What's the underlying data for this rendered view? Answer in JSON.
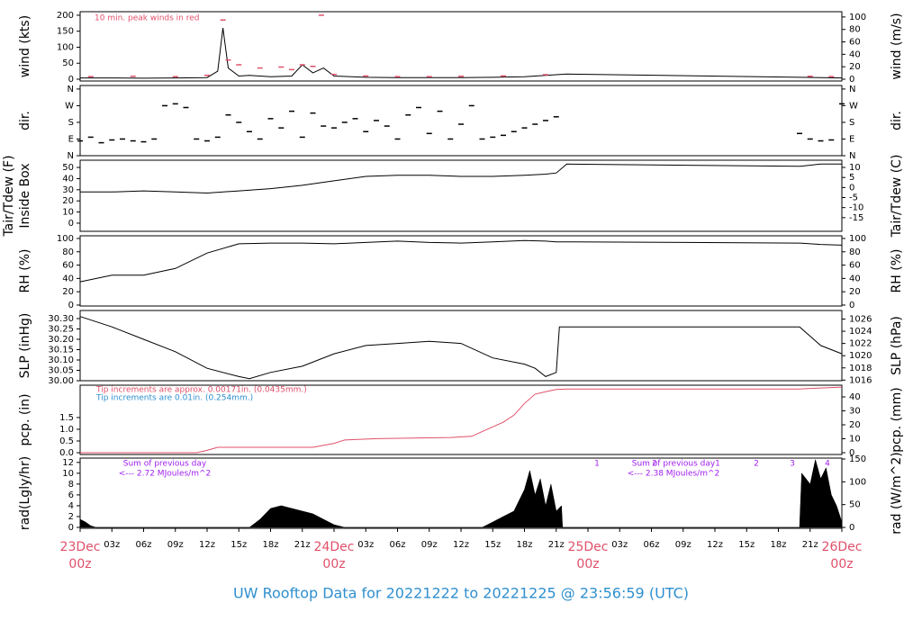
{
  "footer": "UW Rooftop Data for 20221222  to  20221225 @ 23:56:59  (UTC)",
  "chart_data": [
    {
      "type": "line",
      "ylabel": "wind (kts)",
      "y2label": "wind (m/s)",
      "xlim": [
        0,
        72
      ],
      "ylim": [
        -5.6,
        211
      ],
      "yticks": [
        0,
        50,
        100,
        150,
        200
      ],
      "y2lim": [
        -2.9,
        108.5
      ],
      "y2ticks": [
        0,
        20,
        40,
        60,
        80,
        100
      ],
      "annotations": [
        {
          "text": "10 min. peak winds in red"
        }
      ],
      "series": [
        {
          "type": "line",
          "color": "#000000",
          "x": [
            0,
            3,
            6,
            9,
            12,
            13,
            13.5,
            14,
            15,
            16,
            18,
            20,
            21,
            22,
            23,
            24,
            27,
            30,
            33,
            36,
            39,
            42,
            45,
            46,
            68,
            70,
            72
          ],
          "values": [
            4,
            4,
            3,
            4,
            5,
            25,
            160,
            35,
            10,
            12,
            8,
            10,
            45,
            20,
            35,
            10,
            6,
            5,
            5,
            5,
            6,
            8,
            14,
            16,
            6,
            5,
            4
          ]
        },
        {
          "type": "scatter",
          "color": "#e0506a",
          "x": [
            1,
            5,
            9,
            12,
            13.5,
            14,
            15,
            17,
            19,
            20,
            21,
            22,
            22.8,
            24,
            27,
            30,
            33,
            36,
            40,
            44,
            69,
            71
          ],
          "values": [
            8,
            9,
            8,
            12,
            185,
            60,
            45,
            35,
            38,
            30,
            45,
            40,
            200,
            15,
            10,
            8,
            8,
            9,
            10,
            14,
            9,
            8
          ]
        }
      ]
    },
    {
      "type": "scatter",
      "ylabel": "dir.",
      "y2label": "dir.",
      "xlim": [
        0,
        72
      ],
      "ylim": [
        0,
        379
      ],
      "yticks": [
        {
          "value": 0,
          "label": "N"
        },
        {
          "value": 90,
          "label": "E"
        },
        {
          "value": 180,
          "label": "S"
        },
        {
          "value": 270,
          "label": "W"
        },
        {
          "value": 360,
          "label": "N"
        }
      ],
      "y2lim": [
        0,
        379
      ],
      "y2ticks": [
        {
          "value": 0,
          "label": "N"
        },
        {
          "value": 90,
          "label": "E"
        },
        {
          "value": 180,
          "label": "S"
        },
        {
          "value": 270,
          "label": "W"
        },
        {
          "value": 360,
          "label": "N"
        }
      ],
      "series": [
        {
          "type": "scatter",
          "color": "#000000",
          "x": [
            0,
            1,
            2,
            3,
            4,
            5,
            6,
            7,
            8,
            9,
            10,
            11,
            12,
            13,
            14,
            15,
            16,
            17,
            18,
            19,
            20,
            21,
            22,
            23,
            24,
            25,
            26,
            27,
            28,
            29,
            30,
            31,
            32,
            33,
            34,
            35,
            36,
            37,
            38,
            39,
            40,
            41,
            42,
            43,
            44,
            45,
            68,
            69,
            70,
            71,
            72
          ],
          "values": [
            80,
            100,
            70,
            85,
            90,
            80,
            75,
            90,
            270,
            280,
            260,
            90,
            80,
            100,
            220,
            180,
            130,
            90,
            200,
            150,
            240,
            100,
            230,
            160,
            150,
            180,
            200,
            130,
            190,
            160,
            90,
            220,
            260,
            120,
            240,
            90,
            170,
            270,
            90,
            100,
            110,
            130,
            150,
            170,
            190,
            210,
            120,
            90,
            80,
            85,
            280
          ]
        }
      ]
    },
    {
      "type": "line",
      "ylabel": "Inside Box",
      "ylabel_outer": "Tair/Tdew (F)",
      "y2label": "Tair/Tdew (C)",
      "xlim": [
        0,
        72
      ],
      "ylim": [
        -7.3,
        56.5
      ],
      "yticks": [
        0,
        10,
        20,
        30,
        40,
        50
      ],
      "y2lim": [
        -21.8,
        13.6
      ],
      "y2ticks": [
        -15,
        -10,
        -5,
        0,
        5,
        10
      ],
      "series": [
        {
          "type": "line",
          "color": "#000000",
          "x": [
            0,
            3,
            6,
            9,
            12,
            15,
            18,
            21,
            24,
            27,
            30,
            33,
            36,
            39,
            42,
            44,
            45,
            46,
            68,
            70,
            72
          ],
          "values": [
            28,
            28,
            29,
            28,
            27,
            29,
            31,
            34,
            38,
            42,
            43,
            43,
            42,
            42,
            43,
            44,
            45,
            53,
            51,
            53,
            53
          ]
        }
      ]
    },
    {
      "type": "line",
      "ylabel": "RH (%)",
      "y2label": "RH (%)",
      "xlim": [
        0,
        72
      ],
      "ylim": [
        -1.4,
        104
      ],
      "yticks": [
        0,
        20,
        40,
        60,
        80,
        100
      ],
      "y2lim": [
        -1.4,
        104
      ],
      "y2ticks": [
        0,
        20,
        40,
        60,
        80,
        100
      ],
      "series": [
        {
          "type": "line",
          "color": "#000000",
          "x": [
            0,
            3,
            6,
            9,
            12,
            15,
            18,
            21,
            24,
            27,
            30,
            33,
            36,
            39,
            42,
            44,
            45,
            46,
            68,
            70,
            72
          ],
          "values": [
            35,
            45,
            45,
            55,
            78,
            92,
            93,
            93,
            92,
            94,
            96,
            94,
            93,
            95,
            97,
            96,
            95,
            95,
            93,
            91,
            90
          ]
        }
      ]
    },
    {
      "type": "line",
      "ylabel": "SLP (inHg)",
      "y2label": "SLP (hPa)",
      "xlim": [
        0,
        72
      ],
      "ylim": [
        30.0,
        30.339
      ],
      "yticks": [
        {
          "value": 30.0,
          "label": "30.00"
        },
        30.05,
        {
          "value": 30.1,
          "label": "30.10"
        },
        30.15,
        {
          "value": 30.2,
          "label": "30.20"
        },
        30.25,
        {
          "value": 30.3,
          "label": "30.30"
        }
      ],
      "y2lim": [
        1015.9,
        1027.4
      ],
      "y2ticks": [
        1016,
        1018,
        1020,
        1022,
        1024,
        1026
      ],
      "series": [
        {
          "type": "line",
          "color": "#000000",
          "x": [
            0,
            3,
            6,
            9,
            12,
            15,
            16,
            18,
            21,
            24,
            27,
            30,
            33,
            36,
            39,
            42,
            43,
            44,
            45,
            45.3,
            68,
            70,
            72
          ],
          "values": [
            30.31,
            30.26,
            30.2,
            30.14,
            30.06,
            30.02,
            30.01,
            30.04,
            30.07,
            30.13,
            30.17,
            30.18,
            30.19,
            30.18,
            30.11,
            30.08,
            30.06,
            30.02,
            30.04,
            30.26,
            30.26,
            30.17,
            30.13
          ]
        }
      ]
    },
    {
      "type": "line",
      "ylabel": "pcp. (in)",
      "y2label": "pcp. (mm)",
      "xlim": [
        0,
        72
      ],
      "ylim": [
        -0.077,
        2.88
      ],
      "yticks": [
        {
          "value": 0,
          "label": "0.0"
        },
        0.5,
        {
          "value": 1,
          "label": "1.0"
        },
        1.5
      ],
      "y2lim": [
        -1.3,
        48.4
      ],
      "y2ticks": [
        0,
        10,
        20,
        30,
        40
      ],
      "annotations": [
        {
          "text": "Tip increments are approx. 0.00171in. (0.0435mm.)"
        },
        {
          "text": "Tip increments are 0.01in. (0.254mm.)"
        }
      ],
      "series": [
        {
          "type": "line",
          "color": "#e0506a",
          "x": [
            0,
            11,
            12,
            13,
            22,
            24,
            25,
            28,
            35,
            37,
            38,
            40,
            41,
            42,
            43,
            44,
            45,
            46,
            68,
            72
          ],
          "values": [
            0,
            0,
            0.1,
            0.23,
            0.23,
            0.4,
            0.54,
            0.6,
            0.65,
            0.7,
            0.9,
            1.3,
            1.6,
            2.1,
            2.5,
            2.6,
            2.7,
            2.72,
            2.72,
            2.8
          ]
        }
      ]
    },
    {
      "type": "area",
      "ylabel": "rad(Lgly/hr)",
      "y2label": "rad (W/m^2)",
      "xlim": [
        0,
        72
      ],
      "ylim": [
        -0.17,
        12.8
      ],
      "yticks": [
        0,
        2,
        4,
        6,
        8,
        10,
        12
      ],
      "y2lim": [
        -2,
        152
      ],
      "y2ticks": [
        0,
        50,
        100,
        150
      ],
      "xticks": [
        {
          "value": 0,
          "label": "23Dec",
          "sublabel": "00z"
        },
        {
          "value": 3,
          "label": "03z"
        },
        {
          "value": 6,
          "label": "06z"
        },
        {
          "value": 9,
          "label": "09z"
        },
        {
          "value": 12,
          "label": "12z"
        },
        {
          "value": 15,
          "label": "15z"
        },
        {
          "value": 18,
          "label": "18z"
        },
        {
          "value": 21,
          "label": "21z"
        },
        {
          "value": 24,
          "label": "24Dec",
          "sublabel": "00z"
        },
        {
          "value": 27,
          "label": "03z"
        },
        {
          "value": 30,
          "label": "06z"
        },
        {
          "value": 33,
          "label": "09z"
        },
        {
          "value": 36,
          "label": "12z"
        },
        {
          "value": 39,
          "label": "15z"
        },
        {
          "value": 42,
          "label": "18z"
        },
        {
          "value": 45,
          "label": "21z"
        },
        {
          "value": 48,
          "label": "25Dec",
          "sublabel": "00z"
        },
        {
          "value": 51,
          "label": "03z"
        },
        {
          "value": 54,
          "label": "06z"
        },
        {
          "value": 57,
          "label": "09z"
        },
        {
          "value": 60,
          "label": "12z"
        },
        {
          "value": 63,
          "label": "15z"
        },
        {
          "value": 66,
          "label": "18z"
        },
        {
          "value": 69,
          "label": "21z"
        },
        {
          "value": 72,
          "label": "26Dec",
          "sublabel": "00z"
        }
      ],
      "annotations": [
        {
          "text": "Sum of previous day"
        },
        {
          "text": "<--- 2.72 MJoules/m^2"
        },
        {
          "text": "Sum of previous day"
        },
        {
          "text": "<--- 2.38 MJoules/m^2"
        },
        {
          "text": "1"
        },
        {
          "text": "2"
        },
        {
          "text": "1"
        },
        {
          "text": "2"
        },
        {
          "text": "3"
        },
        {
          "text": "4"
        }
      ],
      "series": [
        {
          "type": "area",
          "color": "#000000",
          "x": [
            0,
            0.5,
            1,
            1.5,
            16,
            17,
            18,
            19,
            20,
            21,
            22,
            23,
            24,
            25,
            38,
            39,
            40,
            41,
            42,
            42.5,
            43,
            43.5,
            44,
            44.5,
            45,
            45.5,
            45.6,
            68,
            68.2,
            69,
            69.5,
            70,
            70.5,
            71,
            71.5,
            72
          ],
          "values": [
            1.5,
            1,
            0.3,
            0,
            0,
            1.5,
            3.5,
            4,
            3.5,
            3,
            2.5,
            1.5,
            0.5,
            0,
            0,
            1,
            2,
            3,
            7,
            10.5,
            6,
            9,
            4,
            8,
            3,
            4,
            0,
            0,
            10,
            8,
            12.5,
            9,
            11,
            6,
            4,
            1
          ]
        }
      ]
    }
  ]
}
